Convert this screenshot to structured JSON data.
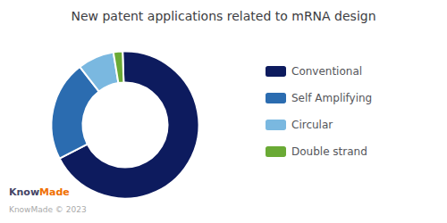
{
  "chart_data": {
    "type": "pie",
    "title": "New patent applications related to mRNA design",
    "categories": [
      "Conventional",
      "Self Amplifying",
      "Circular",
      "Double strand"
    ],
    "values": [
      68,
      22,
      8,
      2
    ],
    "colors": [
      "#0d1b5e",
      "#2b6cb0",
      "#7ab8e0",
      "#6aaa35"
    ],
    "legend": "right",
    "annotations": [
      "Know",
      "Made",
      "KnowMade © 2023"
    ]
  }
}
